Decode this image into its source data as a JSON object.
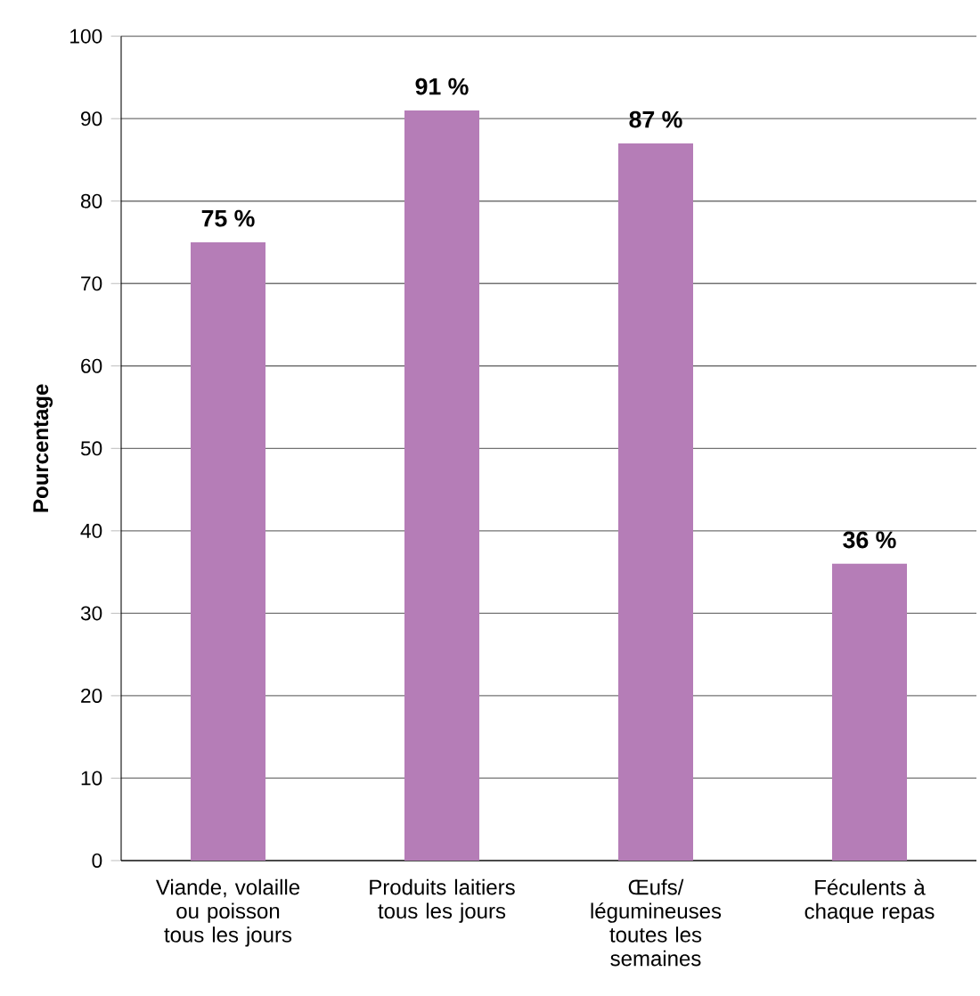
{
  "chart_data": {
    "type": "bar",
    "ylabel": "Pourcentage",
    "categories": [
      "Viande, volaille ou poisson tous les jours",
      "Produits laitiers tous les jours",
      "Œufs/ légumineuses toutes les semaines",
      "Féculents à chaque repas"
    ],
    "values": [
      75,
      91,
      87,
      36
    ],
    "value_labels": [
      "75 %",
      "91 %",
      "87 %",
      "36 %"
    ],
    "color": "#b57db7",
    "ylim": [
      0,
      100
    ],
    "yticks": [
      0,
      10,
      20,
      30,
      40,
      50,
      60,
      70,
      80,
      90,
      100
    ],
    "grid": "y"
  }
}
